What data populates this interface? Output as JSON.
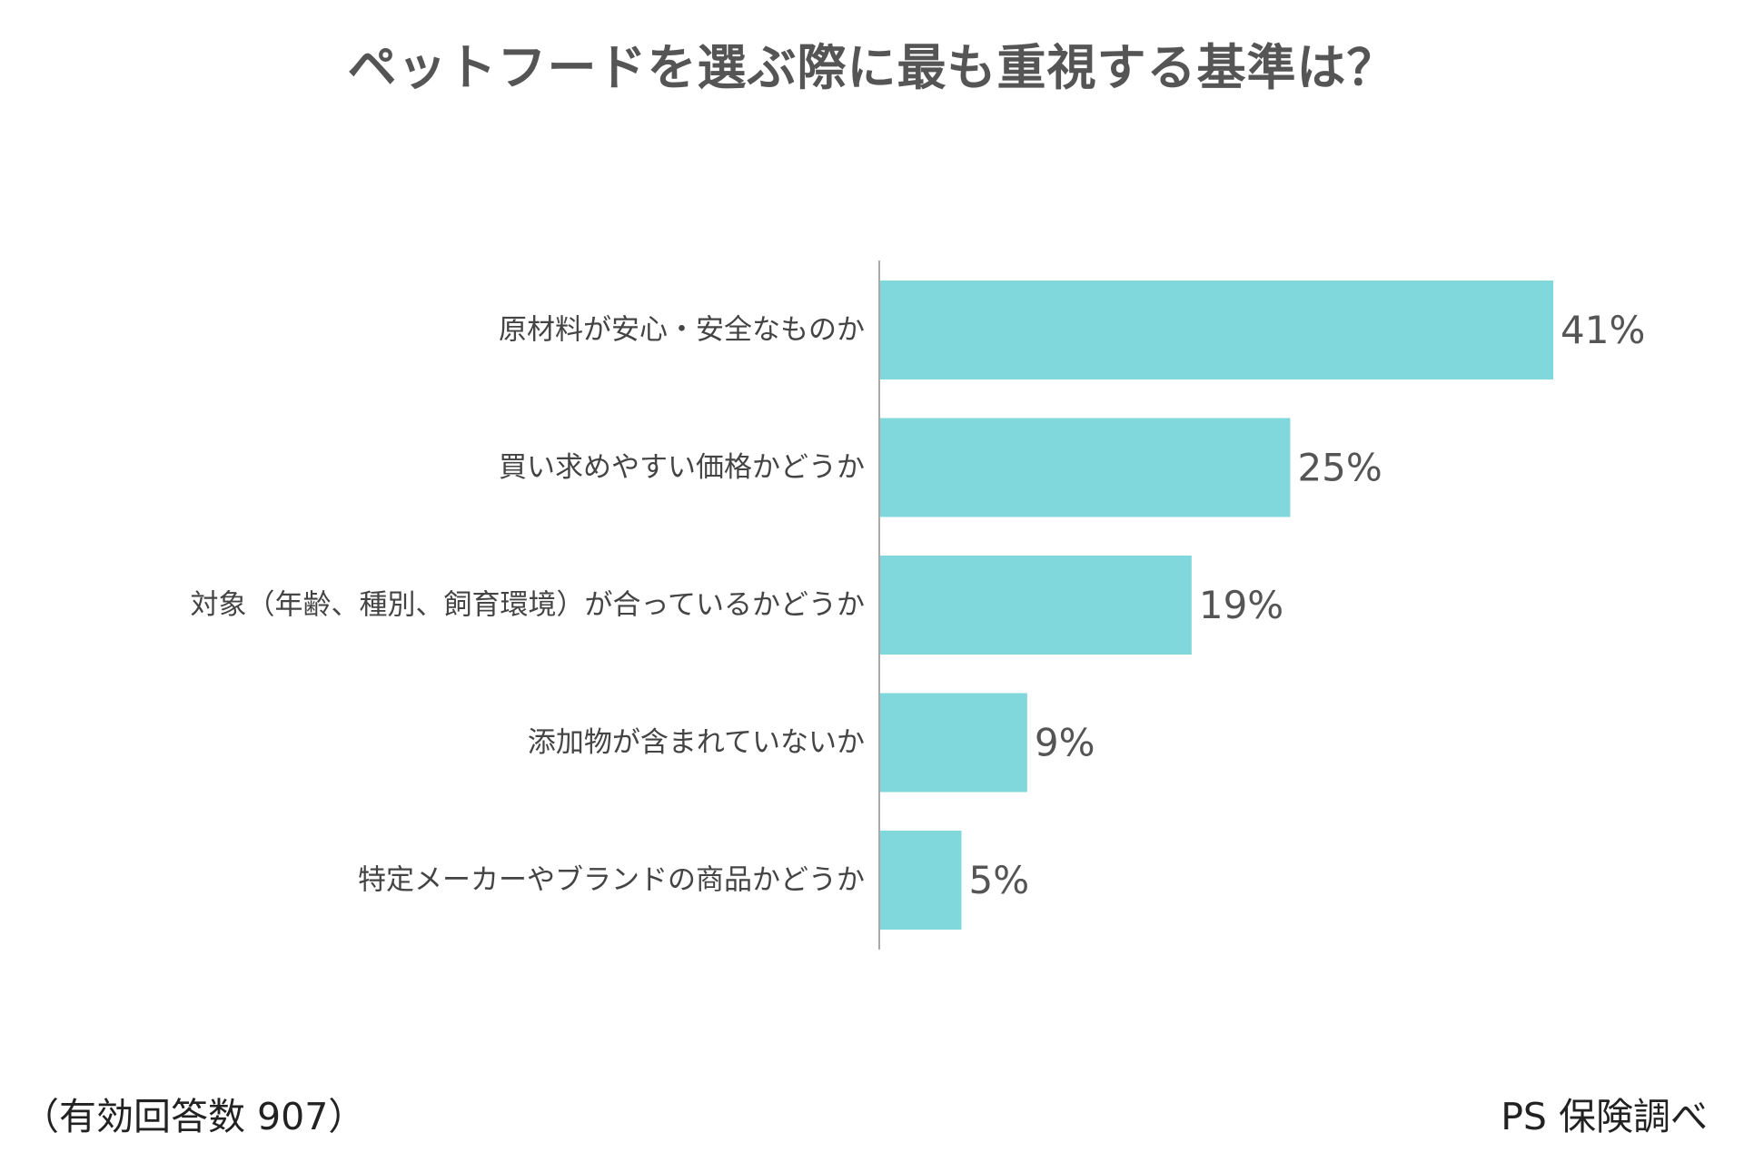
{
  "footer": {
    "sample_note": "（有効回答数 907）",
    "source": "PS 保険調べ"
  },
  "chart_data": {
    "type": "bar",
    "orientation": "horizontal",
    "title": "ペットフードを選ぶ際に最も重視する基準は？",
    "categories": [
      "原材料が安心・安全なものか",
      "買い求めやすい価格かどうか",
      "対象（年齢、種別、飼育環境）が合っているかどうか",
      "添加物が含まれていないか",
      "特定メーカーやブランドの商品かどうか"
    ],
    "values": [
      41,
      25,
      19,
      9,
      5
    ],
    "value_labels": [
      "41%",
      "25%",
      "19%",
      "9%",
      "5%"
    ],
    "xlim": [
      0,
      41
    ],
    "grid": false,
    "legend": "none",
    "bar_color": "#81d8dc",
    "axis_color": "#aaaaaa"
  }
}
